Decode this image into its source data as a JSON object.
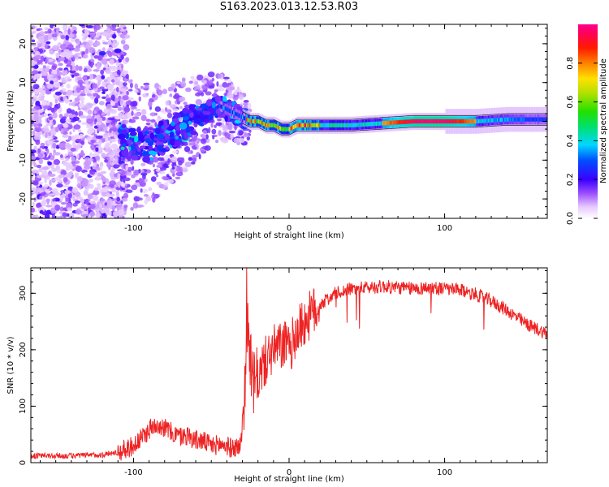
{
  "title": "S163.2023.013.12.53.R03",
  "colors": {
    "snr_line": "#ee2222",
    "frame": "#000000",
    "background": "#ffffff"
  },
  "chart_data": [
    {
      "type": "heatmap",
      "title": "S163.2023.013.12.53.R03",
      "xlabel": "Height of straight line (km)",
      "ylabel": "Frequency (Hz)",
      "xlim": [
        -166,
        166
      ],
      "ylim": [
        -25,
        25
      ],
      "x_ticks": [
        -100,
        0,
        100
      ],
      "y_ticks": [
        -20,
        -10,
        0,
        10,
        20
      ],
      "colorbar": {
        "label": "Normalized spectral amplitude",
        "range": [
          0,
          1
        ],
        "ticks": [
          0.0,
          0.2,
          0.4,
          0.6,
          0.8
        ]
      },
      "ridge": {
        "x": [
          -150,
          -120,
          -100,
          -90,
          -80,
          -70,
          -60,
          -50,
          -45,
          -40,
          -35,
          -30,
          -25,
          -20,
          -15,
          -10,
          -5,
          0,
          5,
          10,
          20,
          40,
          60,
          80,
          100,
          120,
          140,
          166
        ],
        "y": [
          0,
          -3,
          -6,
          -6,
          -4,
          -2,
          1,
          3,
          4,
          3,
          2,
          1,
          0,
          0,
          -1,
          -1,
          -2,
          -2,
          -1,
          -1,
          -1,
          -1,
          -0.5,
          0,
          0,
          0,
          0.5,
          0.5
        ]
      },
      "grid": false
    },
    {
      "type": "line",
      "xlabel": "Height of straight line (km)",
      "ylabel": "SNR (10 * v/v)",
      "xlim": [
        -166,
        166
      ],
      "ylim": [
        0,
        345
      ],
      "x_ticks": [
        -100,
        0,
        100
      ],
      "y_ticks": [
        0,
        100,
        200,
        300
      ],
      "grid": false,
      "series": [
        {
          "x": [
            -166,
            -140,
            -120,
            -110,
            -100,
            -95,
            -90,
            -85,
            -80,
            -75,
            -70,
            -65,
            -60,
            -55,
            -50,
            -45,
            -40,
            -37,
            -34,
            -31,
            -29,
            -27,
            -26,
            -25,
            -24,
            -22,
            -20,
            -17,
            -14,
            -10,
            -6,
            -2,
            0,
            3,
            6,
            10,
            15,
            20,
            25,
            30,
            40,
            50,
            60,
            70,
            80,
            90,
            100,
            110,
            115,
            120,
            125,
            130,
            135,
            140,
            145,
            150,
            155,
            160,
            166
          ],
          "y": [
            12,
            12,
            14,
            18,
            30,
            42,
            58,
            70,
            62,
            52,
            46,
            48,
            40,
            38,
            30,
            32,
            30,
            25,
            28,
            30,
            110,
            200,
            250,
            185,
            150,
            135,
            150,
            170,
            185,
            200,
            205,
            210,
            195,
            220,
            235,
            250,
            265,
            280,
            290,
            300,
            308,
            310,
            312,
            310,
            308,
            310,
            308,
            305,
            302,
            298,
            292,
            286,
            278,
            270,
            260,
            250,
            242,
            236,
            228
          ]
        }
      ]
    }
  ]
}
